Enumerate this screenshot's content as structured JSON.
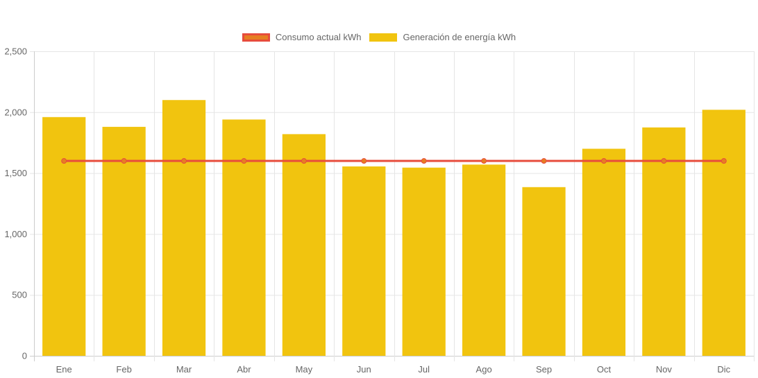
{
  "chart_data": {
    "type": "bar",
    "title": "",
    "xlabel": "",
    "ylabel": "",
    "categories": [
      "Ene",
      "Feb",
      "Mar",
      "Abr",
      "May",
      "Jun",
      "Jul",
      "Ago",
      "Sep",
      "Oct",
      "Nov",
      "Dic"
    ],
    "ylim": [
      0,
      2500
    ],
    "yticks": [
      0,
      500,
      1000,
      1500,
      2000,
      2500
    ],
    "ytick_labels": [
      "0",
      "500",
      "1,000",
      "1,500",
      "2,000",
      "2,500"
    ],
    "grid": true,
    "legend_position": "top-center",
    "series": [
      {
        "name": "Consumo actual kWh",
        "type": "line",
        "color": "#e74c3c",
        "point_color": "#e67e22",
        "values": [
          1600,
          1600,
          1600,
          1600,
          1600,
          1600,
          1600,
          1600,
          1600,
          1600,
          1600,
          1600
        ]
      },
      {
        "name": "Generación de energía kWh",
        "type": "bar",
        "color": "#f1c40f",
        "values": [
          1960,
          1880,
          2100,
          1940,
          1820,
          1555,
          1545,
          1570,
          1385,
          1700,
          1875,
          2020
        ]
      }
    ]
  },
  "legend": [
    {
      "label": "Consumo actual kWh",
      "fill": "#e67e22",
      "border": "#e74c3c"
    },
    {
      "label": "Generación de energía kWh",
      "fill": "#f1c40f",
      "border": "#f1c40f"
    }
  ]
}
